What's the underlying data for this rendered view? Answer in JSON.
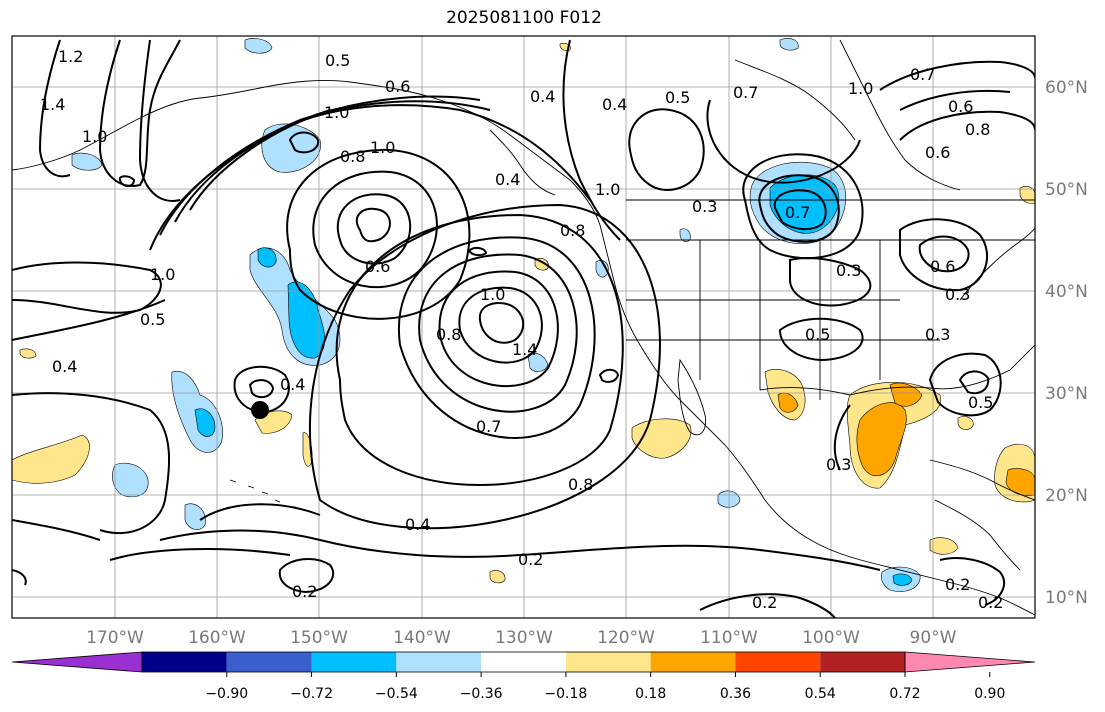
{
  "title": "2025081100 F012",
  "lat_labels": [
    "60°N",
    "50°N",
    "40°N",
    "30°N",
    "20°N",
    "10°N"
  ],
  "lon_labels": [
    "170°W",
    "160°W",
    "150°W",
    "140°W",
    "130°W",
    "120°W",
    "110°W",
    "100°W",
    "90°W"
  ],
  "colorbar": {
    "ticks": [
      "−0.90",
      "−0.72",
      "−0.54",
      "−0.36",
      "−0.18",
      "0.18",
      "0.36",
      "0.54",
      "0.72",
      "0.90"
    ],
    "colors": [
      "#9b30d0",
      "#00008b",
      "#3a5fcd",
      "#00bfff",
      "#b0e0ff",
      "#ffffff",
      "#ffe68a",
      "#ffa500",
      "#ff4500",
      "#b22222",
      "#ff88b0"
    ],
    "extend": "both"
  },
  "contour_labels": [
    "1.2",
    "1.4",
    "1.0",
    "0.5",
    "0.6",
    "1.0",
    "0.8",
    "1.0",
    "0.4",
    "0.4",
    "0.5",
    "0.7",
    "1.0",
    "0.6",
    "0.7",
    "0.8",
    "0.6",
    "0.7",
    "0.3",
    "1.0",
    "0.6",
    "0.8",
    "0.3",
    "0.6",
    "0.3",
    "0.4",
    "1.0",
    "0.5",
    "0.4",
    "1.0",
    "0.8",
    "1.4",
    "0.7",
    "0.4",
    "0.5",
    "0.3",
    "0.8",
    "0.4",
    "0.2",
    "0.2",
    "0.3",
    "0.5",
    "0.2",
    "0.2",
    "0.2"
  ],
  "colors": {
    "contour": "#000000",
    "grid": "#9a9a9a",
    "coast": "#000000",
    "marker": "#000000"
  }
}
